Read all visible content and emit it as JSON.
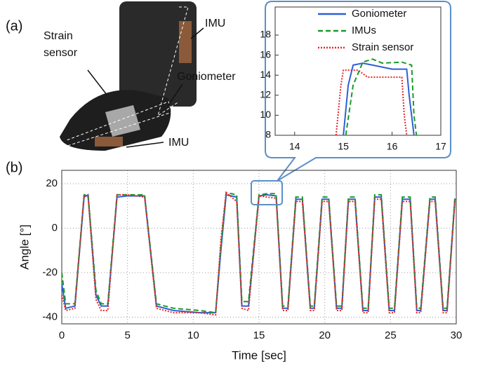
{
  "figure": {
    "panel_a": "(a)",
    "panel_b": "(b)",
    "photo_labels": [
      "Strain sensor",
      "IMU",
      "Goniometer",
      "IMU"
    ]
  },
  "chart_data": [
    {
      "type": "line",
      "xlabel": "Time [sec]",
      "ylabel": "Angle [°]",
      "xlim": [
        0,
        30
      ],
      "ylim": [
        -43,
        26
      ],
      "xticks": [
        0,
        5,
        10,
        15,
        20,
        25,
        30
      ],
      "yticks": [
        -40,
        -20,
        0,
        20
      ],
      "grid": true,
      "x": [
        0,
        0.3,
        1.0,
        1.7,
        2.0,
        2.6,
        3.0,
        3.5,
        4.2,
        5,
        6.3,
        7.2,
        8.5,
        10.5,
        11.7,
        12.1,
        12.5,
        13.3,
        13.7,
        14.2,
        15.0,
        15.6,
        16.3,
        16.8,
        17.2,
        17.8,
        18.3,
        18.9,
        19.2,
        19.8,
        20.3,
        20.9,
        21.3,
        21.8,
        22.3,
        22.9,
        23.3,
        23.8,
        24.3,
        24.9,
        25.3,
        25.9,
        26.5,
        27.0,
        27.3,
        28.0,
        28.4,
        29.0,
        29.3,
        29.9,
        30
      ],
      "series": [
        {
          "name": "Goniometer",
          "color": "#2f5fd6",
          "style": "solid",
          "values": [
            -25,
            -36,
            -35,
            14,
            15,
            -30,
            -35,
            -35,
            14,
            14.5,
            14.5,
            -35,
            -37,
            -38,
            -38,
            -10,
            15,
            14,
            -35,
            -35,
            14.5,
            15,
            14.5,
            -36,
            -36,
            13,
            13,
            -36,
            -36,
            13,
            13,
            -36,
            -36,
            13,
            13,
            -37,
            -37,
            14,
            14,
            -37,
            -37,
            13,
            13,
            -37,
            -37,
            13,
            13,
            -37,
            -37,
            13,
            13
          ]
        },
        {
          "name": "IMUs",
          "color": "#1a9a2a",
          "style": "dashed",
          "values": [
            -20,
            -34,
            -34,
            15,
            15,
            -28,
            -34,
            -34,
            15,
            15,
            15,
            -34,
            -36,
            -37,
            -38,
            -8,
            16,
            15,
            -33,
            -33,
            15,
            15.5,
            15.5,
            -35,
            -35,
            14,
            14,
            -35,
            -35,
            14,
            14,
            -35,
            -35,
            14,
            14,
            -36,
            -36,
            15,
            15,
            -36,
            -36,
            14,
            14,
            -36,
            -36,
            14,
            14,
            -36,
            -36,
            14,
            14
          ]
        },
        {
          "name": "Strain sensor",
          "color": "#e8252a",
          "style": "dotted",
          "values": [
            -30,
            -37,
            -36,
            15,
            14,
            -32,
            -37,
            -37,
            15,
            15,
            14,
            -36,
            -38,
            -38,
            -39,
            -5,
            16,
            12,
            -36,
            -37,
            14.5,
            14,
            13.5,
            -37,
            -37,
            12,
            12,
            -37,
            -37,
            12,
            12,
            -37,
            -37,
            12,
            12,
            -38,
            -38,
            13,
            13,
            -38,
            -38,
            12,
            12,
            -38,
            -38,
            12,
            12,
            -38,
            -38,
            12,
            12
          ]
        }
      ]
    },
    {
      "type": "line",
      "xlim": [
        13.6,
        17
      ],
      "ylim": [
        8,
        20.8
      ],
      "xticks": [
        14,
        15,
        16,
        17
      ],
      "yticks": [
        8,
        10,
        12,
        14,
        16,
        18
      ],
      "grid": false,
      "legend": "top-right",
      "series": [
        {
          "name": "Goniometer",
          "color": "#2f5fd6",
          "style": "solid",
          "x": [
            15.0,
            15.1,
            15.2,
            15.4,
            15.6,
            16.0,
            16.3,
            16.35,
            16.45
          ],
          "values": [
            8,
            13,
            15,
            15.2,
            15,
            14.6,
            14.6,
            12,
            8
          ]
        },
        {
          "name": "IMUs",
          "color": "#1a9a2a",
          "style": "dashed",
          "x": [
            15.05,
            15.2,
            15.4,
            15.6,
            15.8,
            16.2,
            16.4,
            16.45,
            16.5
          ],
          "values": [
            8,
            13,
            15.3,
            15.6,
            15.2,
            15.3,
            15,
            10,
            8
          ]
        },
        {
          "name": "Strain sensor",
          "color": "#e8252a",
          "style": "dotted",
          "x": [
            14.85,
            14.95,
            15.0,
            15.3,
            15.5,
            16.0,
            16.2,
            16.25,
            16.3
          ],
          "values": [
            8,
            13,
            14.5,
            14.5,
            13.8,
            13.8,
            13.8,
            10,
            8
          ]
        }
      ]
    }
  ]
}
